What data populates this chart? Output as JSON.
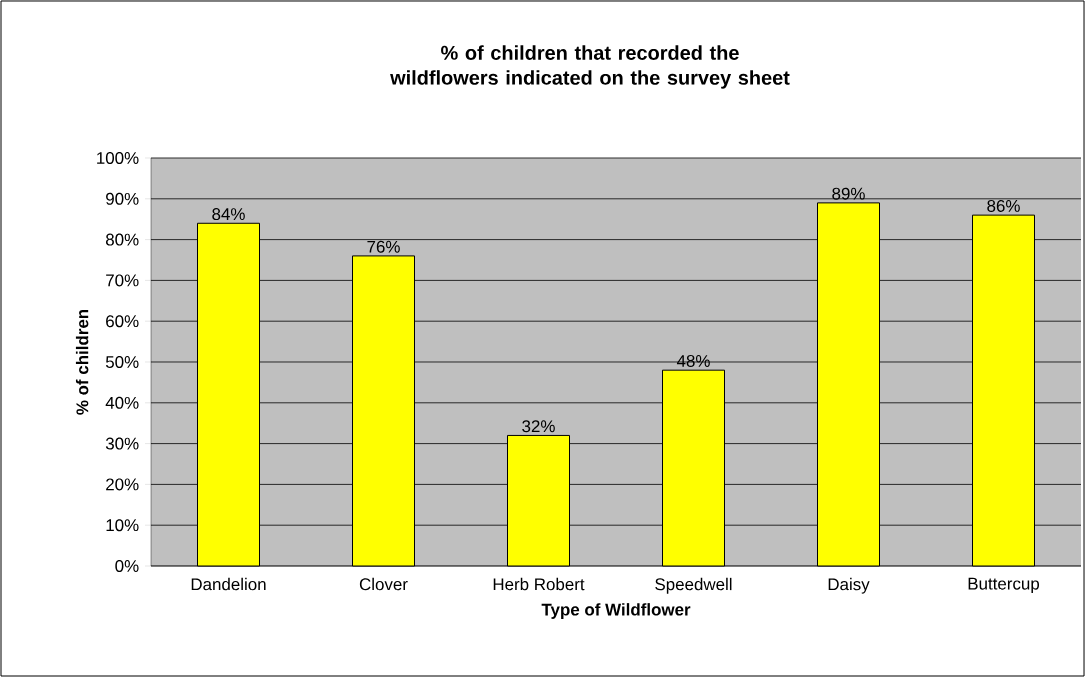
{
  "chart_data": {
    "type": "bar",
    "title": "% of children that recorded the wildflowers indicated on the survey sheet",
    "xlabel": "Type of Wildflower",
    "ylabel": "% of children",
    "categories": [
      "Dandelion",
      "Clover",
      "Herb Robert",
      "Speedwell",
      "Daisy",
      "Buttercup"
    ],
    "values": [
      84,
      76,
      32,
      48,
      89,
      86
    ],
    "value_labels": [
      "84%",
      "76%",
      "32%",
      "48%",
      "89%",
      "86%"
    ],
    "color": "#ffff00",
    "ylim": [
      0,
      100
    ],
    "yticks": [
      {
        "value": 0,
        "label": "0%"
      },
      {
        "value": 10,
        "label": "10%"
      },
      {
        "value": 20,
        "label": "20%"
      },
      {
        "value": 30,
        "label": "30%"
      },
      {
        "value": 40,
        "label": "40%"
      },
      {
        "value": 50,
        "label": "50%"
      },
      {
        "value": 60,
        "label": "60%"
      },
      {
        "value": 70,
        "label": "70%"
      },
      {
        "value": 80,
        "label": "80%"
      },
      {
        "value": 90,
        "label": "90%"
      },
      {
        "value": 100,
        "label": "100%"
      }
    ],
    "grid": "y"
  }
}
